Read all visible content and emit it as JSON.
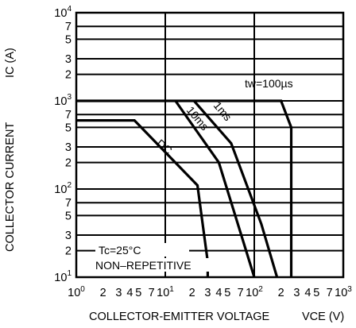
{
  "chart_data": {
    "type": "line",
    "title": "",
    "xlabel": "COLLECTOR-EMITTER VOLTAGE",
    "xunit": "VCE (V)",
    "ylabel": "COLLECTOR CURRENT",
    "yunit": "IC (A)",
    "x_scale": "log",
    "y_scale": "log",
    "xlim": [
      1,
      1000
    ],
    "ylim": [
      10,
      10000
    ],
    "grid": true,
    "legend": "none",
    "x_ticks": [
      {
        "label": "10",
        "sup": "0"
      },
      {
        "label": "2"
      },
      {
        "label": "3"
      },
      {
        "label": "4"
      },
      {
        "label": "5"
      },
      {
        "label": "7"
      },
      {
        "label": "10",
        "sup": "1"
      },
      {
        "label": "2"
      },
      {
        "label": "3"
      },
      {
        "label": "4"
      },
      {
        "label": "5"
      },
      {
        "label": "7"
      },
      {
        "label": "10",
        "sup": "2"
      },
      {
        "label": "2"
      },
      {
        "label": "3"
      },
      {
        "label": "4"
      },
      {
        "label": "5"
      },
      {
        "label": "7"
      },
      {
        "label": "10",
        "sup": "3"
      }
    ],
    "y_ticks": [
      {
        "label": "10",
        "sup": "1"
      },
      {
        "label": "2"
      },
      {
        "label": "3"
      },
      {
        "label": "5"
      },
      {
        "label": "7"
      },
      {
        "label": "10",
        "sup": "2"
      },
      {
        "label": "2"
      },
      {
        "label": "3"
      },
      {
        "label": "5"
      },
      {
        "label": "7"
      },
      {
        "label": "10",
        "sup": "3"
      },
      {
        "label": "2"
      },
      {
        "label": "3"
      },
      {
        "label": "5"
      },
      {
        "label": "7"
      },
      {
        "label": "10",
        "sup": "4"
      }
    ],
    "series": [
      {
        "label": "DC",
        "points": [
          [
            1,
            600
          ],
          [
            4.5,
            600
          ],
          [
            23,
            110
          ],
          [
            30,
            15
          ],
          [
            30,
            10
          ]
        ]
      },
      {
        "label": "10ms",
        "points": [
          [
            13,
            1000
          ],
          [
            40,
            200
          ],
          [
            100,
            10
          ]
        ]
      },
      {
        "label": "1ms",
        "points": [
          [
            21,
            1000
          ],
          [
            55,
            330
          ],
          [
            120,
            40
          ],
          [
            180,
            10
          ]
        ]
      },
      {
        "label": "tw=100µs",
        "points": [
          [
            1,
            1000
          ],
          [
            200,
            1000
          ],
          [
            260,
            500
          ],
          [
            260,
            10
          ]
        ]
      }
    ],
    "annotations": [
      "Tc=25°C",
      "NON–REPETITIVE"
    ]
  }
}
